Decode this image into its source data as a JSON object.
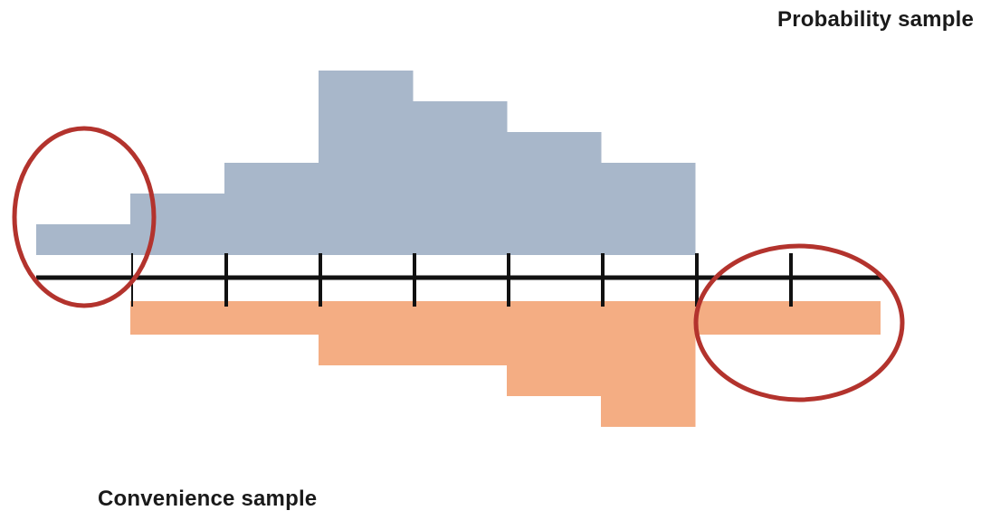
{
  "labels": {
    "probability": "Probability sample",
    "convenience": "Convenience sample"
  },
  "colors": {
    "probability_fill": "#a8b7ca",
    "convenience_fill": "#f4ad83",
    "axis": "#111111",
    "highlight": "#b3332d"
  },
  "chart_data": {
    "type": "bar",
    "bins": 9,
    "series": [
      {
        "name": "Probability sample",
        "direction": "up",
        "values": [
          1,
          2,
          3,
          6,
          5,
          4,
          3,
          0,
          0
        ]
      },
      {
        "name": "Convenience sample",
        "direction": "down",
        "values": [
          0,
          1,
          1,
          2,
          2,
          3,
          4,
          1,
          1
        ]
      }
    ],
    "highlighted_bins": [
      0,
      7,
      8
    ]
  }
}
